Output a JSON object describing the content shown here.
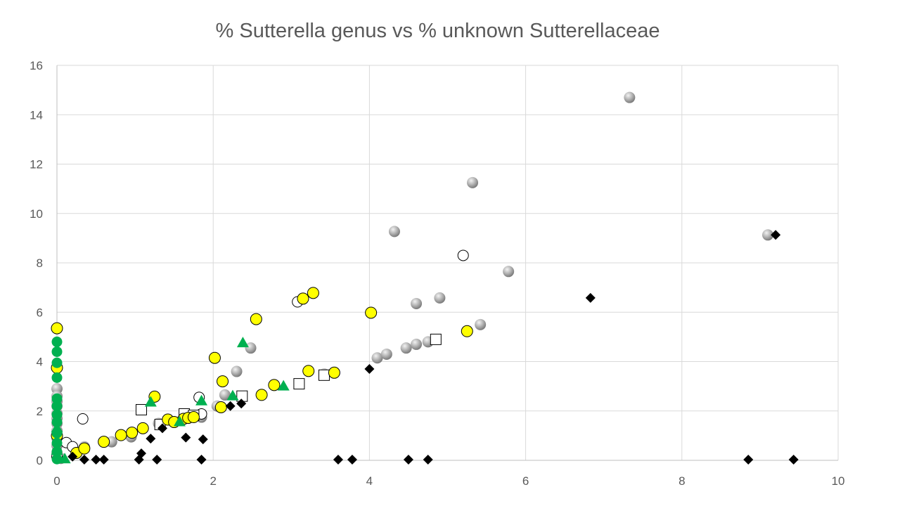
{
  "chart_data": {
    "type": "scatter",
    "title": "% Sutterella genus vs % unknown Sutterellaceae",
    "xlabel": "",
    "ylabel": "",
    "xlim": [
      0,
      10
    ],
    "ylim": [
      0,
      16
    ],
    "x_ticks": [
      0,
      2,
      4,
      6,
      8,
      10
    ],
    "y_ticks": [
      0,
      2,
      4,
      6,
      8,
      10,
      12,
      14,
      16
    ],
    "x_tick_labels": [
      "0",
      "2",
      "4",
      "6",
      "8",
      "10"
    ],
    "y_tick_labels": [
      "0",
      "2",
      "4",
      "6",
      "8",
      "10",
      "12",
      "14",
      "16"
    ],
    "grid": true,
    "legend": "none",
    "series": [
      {
        "marker": "gray-sphere",
        "color": "#8c8c8c",
        "points": [
          [
            0,
            2.9
          ],
          [
            0,
            2.6
          ],
          [
            0,
            2.4
          ],
          [
            0,
            2.2
          ],
          [
            0,
            1.9
          ],
          [
            0,
            1.7
          ],
          [
            0,
            1.5
          ],
          [
            0,
            1.2
          ],
          [
            0,
            0.9
          ],
          [
            0,
            0.6
          ],
          [
            0,
            0.3
          ],
          [
            0.05,
            0.08
          ],
          [
            0.35,
            0.55
          ],
          [
            0.7,
            0.75
          ],
          [
            0.95,
            0.95
          ],
          [
            1.3,
            1.5
          ],
          [
            1.85,
            1.75
          ],
          [
            2.05,
            2.2
          ],
          [
            2.15,
            2.65
          ],
          [
            2.3,
            3.6
          ],
          [
            2.48,
            4.55
          ],
          [
            3.42,
            3.5
          ],
          [
            4.1,
            4.15
          ],
          [
            4.22,
            4.3
          ],
          [
            4.32,
            9.27
          ],
          [
            4.47,
            4.55
          ],
          [
            4.6,
            4.7
          ],
          [
            4.6,
            6.35
          ],
          [
            4.75,
            4.8
          ],
          [
            4.9,
            6.58
          ],
          [
            5.32,
            11.25
          ],
          [
            5.42,
            5.5
          ],
          [
            5.78,
            7.65
          ],
          [
            7.33,
            14.7
          ],
          [
            9.1,
            9.13
          ]
        ]
      },
      {
        "marker": "white-circle",
        "color": "#ffffff",
        "points": [
          [
            0,
            0.15
          ],
          [
            0.12,
            0.72
          ],
          [
            0.2,
            0.55
          ],
          [
            0.33,
            1.68
          ],
          [
            1.82,
            2.55
          ],
          [
            1.85,
            1.88
          ],
          [
            3.08,
            6.42
          ],
          [
            5.2,
            8.3
          ]
        ]
      },
      {
        "marker": "white-square",
        "color": "#ffffff",
        "points": [
          [
            1.08,
            2.05
          ],
          [
            1.32,
            1.45
          ],
          [
            1.63,
            1.88
          ],
          [
            1.75,
            1.82
          ],
          [
            2.37,
            2.6
          ],
          [
            3.1,
            3.1
          ],
          [
            3.42,
            3.45
          ],
          [
            4.85,
            4.9
          ]
        ]
      },
      {
        "marker": "yellow-circle",
        "color": "#ffff00",
        "points": [
          [
            0,
            5.35
          ],
          [
            0,
            3.75
          ],
          [
            0,
            1.0
          ],
          [
            0.25,
            0.3
          ],
          [
            0.35,
            0.48
          ],
          [
            0.6,
            0.75
          ],
          [
            0.82,
            1.02
          ],
          [
            0.96,
            1.12
          ],
          [
            1.1,
            1.3
          ],
          [
            1.25,
            2.58
          ],
          [
            1.42,
            1.65
          ],
          [
            1.5,
            1.55
          ],
          [
            1.62,
            1.68
          ],
          [
            1.68,
            1.72
          ],
          [
            1.75,
            1.75
          ],
          [
            2.02,
            4.15
          ],
          [
            2.1,
            2.15
          ],
          [
            2.12,
            3.2
          ],
          [
            2.55,
            5.72
          ],
          [
            2.62,
            2.65
          ],
          [
            2.78,
            3.05
          ],
          [
            3.15,
            6.55
          ],
          [
            3.22,
            3.62
          ],
          [
            3.28,
            6.78
          ],
          [
            3.55,
            3.55
          ],
          [
            4.02,
            5.98
          ],
          [
            5.25,
            5.23
          ]
        ]
      },
      {
        "marker": "green-circle",
        "color": "#00b050",
        "points": [
          [
            0,
            4.8
          ],
          [
            0,
            4.4
          ],
          [
            0,
            3.95
          ],
          [
            0,
            3.35
          ],
          [
            0,
            2.5
          ],
          [
            0,
            2.2
          ],
          [
            0,
            1.85
          ],
          [
            0,
            1.55
          ],
          [
            0,
            1.1
          ],
          [
            0,
            0.7
          ],
          [
            0,
            0.35
          ],
          [
            0,
            0.05
          ]
        ]
      },
      {
        "marker": "green-triangle",
        "color": "#00b050",
        "points": [
          [
            0,
            1.3
          ],
          [
            0,
            0.4
          ],
          [
            0.1,
            0.05
          ],
          [
            1.2,
            2.35
          ],
          [
            1.57,
            1.55
          ],
          [
            1.85,
            2.4
          ],
          [
            2.25,
            2.6
          ],
          [
            2.38,
            4.75
          ],
          [
            2.9,
            3.0
          ]
        ]
      },
      {
        "marker": "black-diamond",
        "color": "#000000",
        "points": [
          [
            0.2,
            0.15
          ],
          [
            0.35,
            0.03
          ],
          [
            0.5,
            0.03
          ],
          [
            0.6,
            0.03
          ],
          [
            1.05,
            0.03
          ],
          [
            1.08,
            0.28
          ],
          [
            1.2,
            0.88
          ],
          [
            1.28,
            0.03
          ],
          [
            1.35,
            1.3
          ],
          [
            1.65,
            0.92
          ],
          [
            1.85,
            0.03
          ],
          [
            1.87,
            0.85
          ],
          [
            2.22,
            2.2
          ],
          [
            2.36,
            2.3
          ],
          [
            3.6,
            0.03
          ],
          [
            3.78,
            0.03
          ],
          [
            4.0,
            3.7
          ],
          [
            4.5,
            0.03
          ],
          [
            4.75,
            0.03
          ],
          [
            6.83,
            6.58
          ],
          [
            8.85,
            0.03
          ],
          [
            9.2,
            9.13
          ],
          [
            9.43,
            0.03
          ]
        ]
      }
    ]
  }
}
